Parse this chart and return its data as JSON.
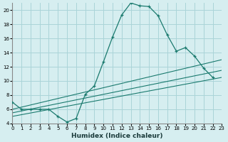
{
  "xlabel": "Humidex (Indice chaleur)",
  "bg_color": "#d6eef0",
  "grid_color": "#aad4d8",
  "line_color": "#1a7a6e",
  "xlim": [
    0,
    23
  ],
  "ylim": [
    4,
    21
  ],
  "xticks": [
    0,
    1,
    2,
    3,
    4,
    5,
    6,
    7,
    8,
    9,
    10,
    11,
    12,
    13,
    14,
    15,
    16,
    17,
    18,
    19,
    20,
    21,
    22,
    23
  ],
  "yticks": [
    4,
    6,
    8,
    10,
    12,
    14,
    16,
    18,
    20
  ],
  "main_x": [
    0,
    1,
    2,
    3,
    4,
    5,
    6,
    7,
    8,
    9,
    10,
    11,
    12,
    13,
    14,
    15,
    16,
    17,
    18,
    19,
    20,
    21,
    22
  ],
  "main_y": [
    7,
    6,
    6,
    6,
    6,
    5,
    4.2,
    4.7,
    8.1,
    9.3,
    12.7,
    16.2,
    19.3,
    21.0,
    20.6,
    20.5,
    19.2,
    16.5,
    14.2,
    14.7,
    13.5,
    11.8,
    10.5
  ],
  "trend_lines": [
    {
      "x": [
        0,
        23
      ],
      "y": [
        6.0,
        13.0
      ]
    },
    {
      "x": [
        0,
        23
      ],
      "y": [
        5.5,
        11.5
      ]
    },
    {
      "x": [
        0,
        23
      ],
      "y": [
        5.0,
        10.5
      ]
    }
  ]
}
